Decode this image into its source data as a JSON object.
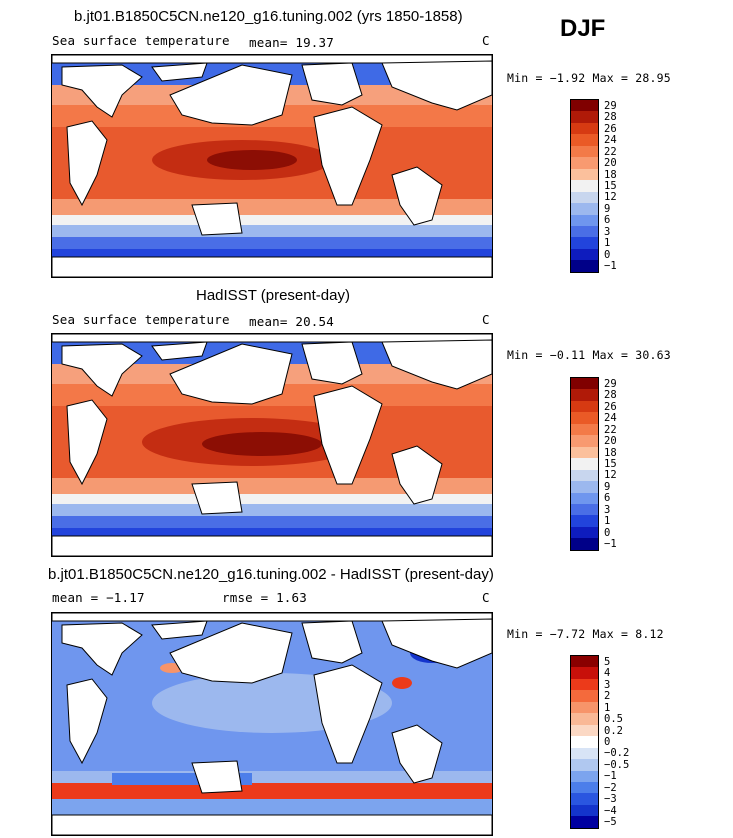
{
  "season": "DJF",
  "panels": [
    {
      "title": "b.jt01.B1850C5CN.ne120_g16.tuning.002 (yrs 1850-1858)",
      "variable": "Sea surface temperature",
      "stat_line": "mean=   19.37",
      "units": "C",
      "minmax": "Min =   −1.92  Max =   28.95",
      "colorbar_labels": [
        "29",
        "28",
        "26",
        "24",
        "22",
        "20",
        "18",
        "15",
        "12",
        "9",
        "6",
        "3",
        "1",
        "0",
        "−1"
      ],
      "colorbar_colors": [
        "#800000",
        "#b01a08",
        "#d63a12",
        "#ea5a26",
        "#f37a48",
        "#f89a70",
        "#fbc09c",
        "#f2f2f2",
        "#c8d6ee",
        "#9cb8ee",
        "#6f96ee",
        "#4a6ee6",
        "#2244dc",
        "#0e1cbe",
        "#000088"
      ]
    },
    {
      "title": "HadISST (present-day)",
      "variable": "Sea surface temperature",
      "stat_line": "mean=   20.54",
      "units": "C",
      "minmax": "Min =   −0.11  Max =   30.63",
      "colorbar_labels": [
        "29",
        "28",
        "26",
        "24",
        "22",
        "20",
        "18",
        "15",
        "12",
        "9",
        "6",
        "3",
        "1",
        "0",
        "−1"
      ],
      "colorbar_colors": [
        "#800000",
        "#b01a08",
        "#d63a12",
        "#ea5a26",
        "#f37a48",
        "#f89a70",
        "#fbc09c",
        "#f2f2f2",
        "#c8d6ee",
        "#9cb8ee",
        "#6f96ee",
        "#4a6ee6",
        "#2244dc",
        "#0e1cbe",
        "#000088"
      ]
    },
    {
      "title": "b.jt01.B1850C5CN.ne120_g16.tuning.002 - HadISST (present-day)",
      "stat_left": "mean =   −1.17",
      "stat_right": "rmse =    1.63",
      "units": "C",
      "minmax": "Min =   −7.72  Max =    8.12",
      "colorbar_labels": [
        "5",
        "4",
        "3",
        "2",
        "1",
        "0.5",
        "0.2",
        "0",
        "−0.2",
        "−0.5",
        "−1",
        "−2",
        "−3",
        "−4",
        "−5"
      ],
      "colorbar_colors": [
        "#8a0000",
        "#c8100a",
        "#ec3a1a",
        "#f46a3c",
        "#f7946a",
        "#f9b896",
        "#fbd8c4",
        "#ffffff",
        "#d8e4f6",
        "#b0c8f0",
        "#7ca4ee",
        "#4c7eea",
        "#2a56e0",
        "#1434cc",
        "#0000a0"
      ]
    }
  ]
}
